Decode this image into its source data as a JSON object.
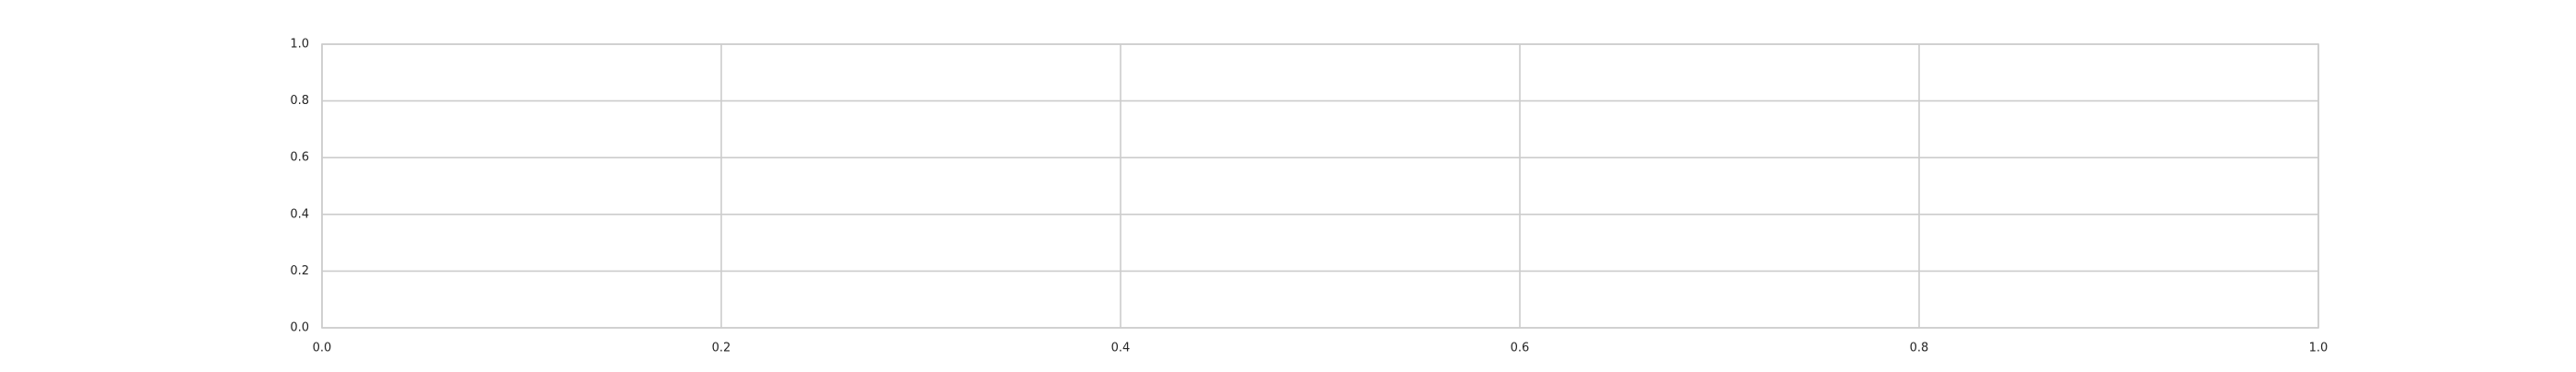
{
  "chart_data": {
    "type": "line",
    "title": "",
    "xlabel": "",
    "ylabel": "",
    "xlim": [
      0.0,
      1.0
    ],
    "ylim": [
      0.0,
      1.0
    ],
    "x_ticks": [
      0.0,
      0.2,
      0.4,
      0.6,
      0.8,
      1.0
    ],
    "y_ticks": [
      0.0,
      0.2,
      0.4,
      0.6,
      0.8,
      1.0
    ],
    "x_tick_labels": [
      "0.0",
      "0.2",
      "0.4",
      "0.6",
      "0.8",
      "1.0"
    ],
    "y_tick_labels": [
      "0.0",
      "0.2",
      "0.4",
      "0.6",
      "0.8",
      "1.0"
    ],
    "grid": true,
    "series": [],
    "colors": {
      "background": "#ffffff",
      "grid": "#cccccc",
      "spine": "#cccccc",
      "text": "#262626"
    }
  }
}
